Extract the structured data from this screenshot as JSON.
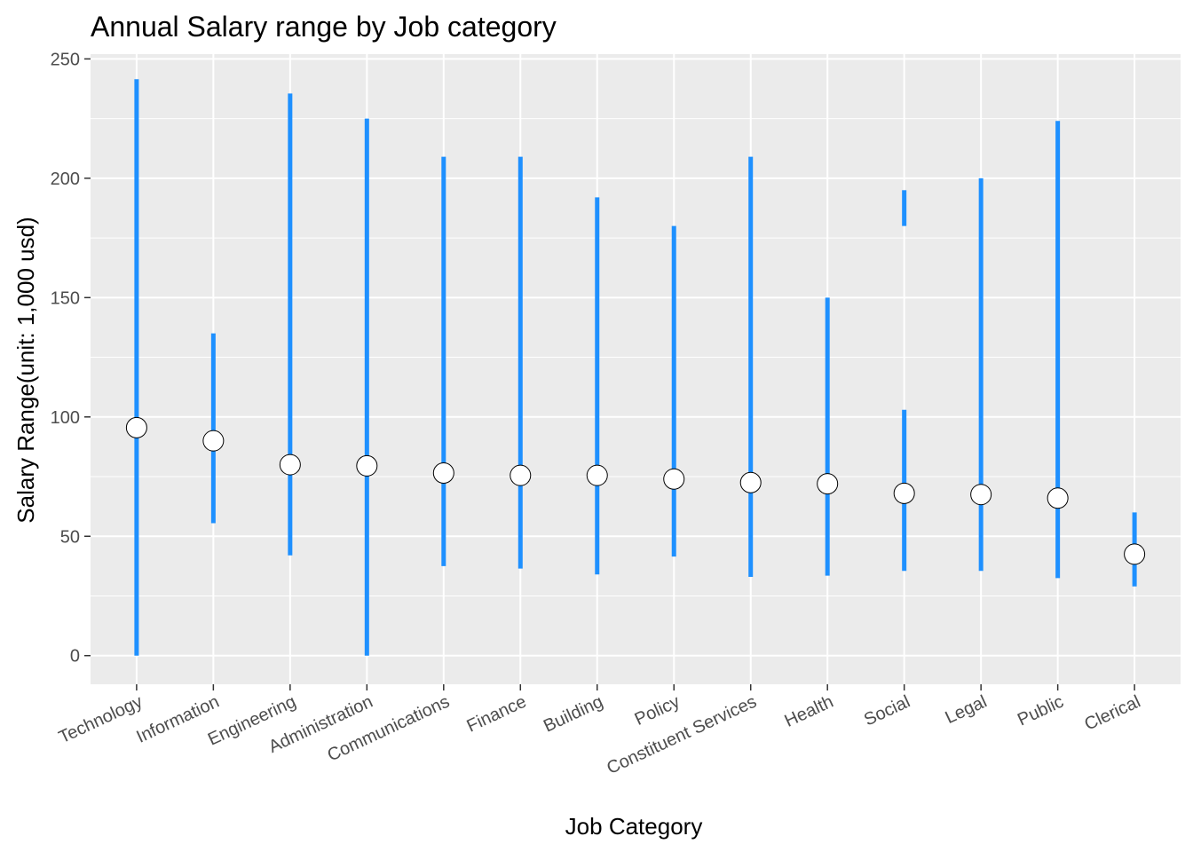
{
  "chart_data": {
    "type": "errorbar",
    "title": "Annual Salary range by Job category",
    "xlabel": "Job Category",
    "ylabel": "Salary Range(unit: 1,000 usd)",
    "ylim": [
      -12,
      252
    ],
    "yticks": [
      0,
      50,
      100,
      150,
      200,
      250
    ],
    "grid": true,
    "categories": [
      "Technology",
      "Information",
      "Engineering",
      "Administration",
      "Communications",
      "Finance",
      "Building",
      "Policy",
      "Constituent Services",
      "Health",
      "Social",
      "Legal",
      "Public",
      "Clerical"
    ],
    "ranges": [
      [
        [
          0,
          241.5
        ]
      ],
      [
        [
          55.5,
          135
        ]
      ],
      [
        [
          42,
          235.5
        ]
      ],
      [
        [
          0,
          225
        ]
      ],
      [
        [
          37.5,
          209
        ]
      ],
      [
        [
          36.5,
          209
        ]
      ],
      [
        [
          34,
          192
        ]
      ],
      [
        [
          41.5,
          180
        ]
      ],
      [
        [
          33,
          209
        ]
      ],
      [
        [
          33.5,
          150
        ]
      ],
      [
        [
          35.5,
          103
        ],
        [
          180,
          195
        ]
      ],
      [
        [
          35.5,
          200
        ]
      ],
      [
        [
          32.5,
          224
        ]
      ],
      [
        [
          29,
          60
        ]
      ]
    ],
    "means": [
      95.5,
      90,
      80,
      79.5,
      76.5,
      75.5,
      75.5,
      74,
      72.5,
      72,
      68,
      67.5,
      66,
      42.5
    ],
    "colors": {
      "panel": "#ebebeb",
      "grid": "#ffffff",
      "range": "#1e90ff",
      "point_fill": "#ffffff",
      "point_stroke": "#000000"
    }
  }
}
